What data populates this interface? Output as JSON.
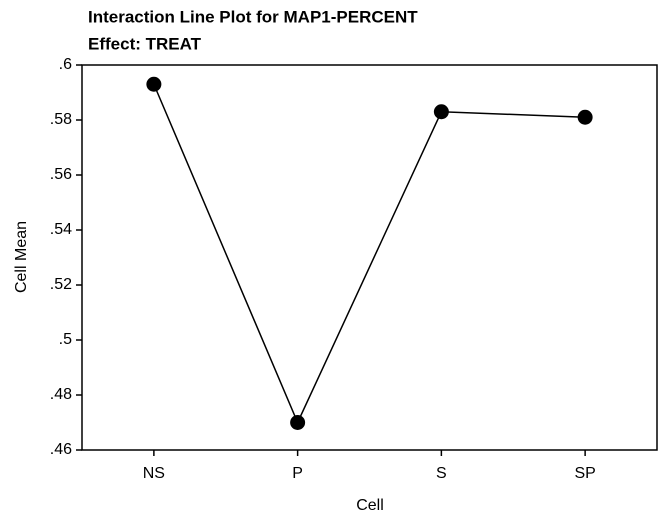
{
  "chart_data": {
    "type": "line",
    "title": "Interaction Line Plot for MAP1-PERCENT",
    "subtitle": "Effect: TREAT",
    "x_label": "Cell",
    "y_label": "Cell Mean",
    "categories": [
      "NS",
      "P",
      "S",
      "SP"
    ],
    "series": [
      {
        "name": "TREAT",
        "color": "#000000",
        "values": [
          0.593,
          0.47,
          0.583,
          0.581
        ]
      }
    ],
    "ylim": [
      0.46,
      0.6
    ],
    "yticks": [
      {
        "value": 0.46,
        "label": ".46"
      },
      {
        "value": 0.48,
        "label": ".48"
      },
      {
        "value": 0.5,
        "label": ".5"
      },
      {
        "value": 0.52,
        "label": ".52"
      },
      {
        "value": 0.54,
        "label": ".54"
      },
      {
        "value": 0.56,
        "label": ".56"
      },
      {
        "value": 0.58,
        "label": ".58"
      },
      {
        "value": 0.6,
        "label": ".6"
      }
    ],
    "grid": false
  }
}
